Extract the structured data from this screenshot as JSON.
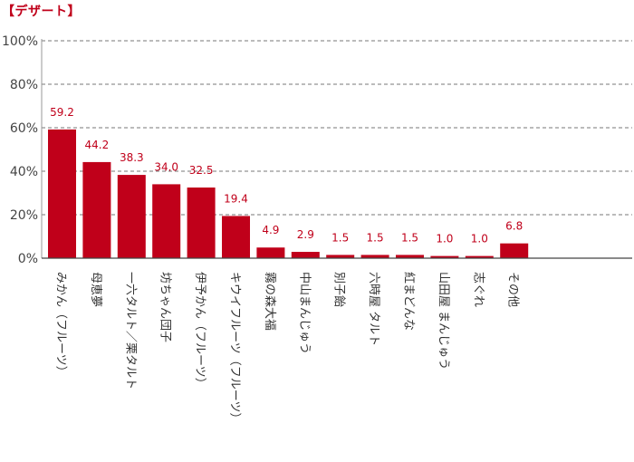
{
  "title": "【デザート】",
  "chart_data": {
    "type": "bar",
    "title": "【デザート】",
    "xlabel": "",
    "ylabel": "",
    "ylim": [
      0,
      100
    ],
    "yticks": [
      "0%",
      "20%",
      "40%",
      "60%",
      "80%",
      "100%"
    ],
    "ytick_values": [
      0,
      20,
      40,
      60,
      80,
      100
    ],
    "grid": true,
    "bar_color": "#c0001a",
    "label_color": "#c0001a",
    "categories": [
      "みかん（フルーツ）",
      "母恵夢",
      "一六タルト／栗タルト",
      "坊ちゃん団子",
      "伊予かん（フルーツ）",
      "キウイフルーツ（フルーツ）",
      "霧の森大福",
      "中山まんじゅう",
      "別子飴",
      "六時屋 タルト",
      "紅まどんな",
      "山田屋 まんじゅう",
      "志ぐれ",
      "その他"
    ],
    "values": [
      59.2,
      44.2,
      38.3,
      34.0,
      32.5,
      19.4,
      4.9,
      2.9,
      1.5,
      1.5,
      1.5,
      1.0,
      1.0,
      6.8
    ],
    "value_labels": [
      "59.2",
      "44.2",
      "38.3",
      "34.0",
      "32.5",
      "19.4",
      "4.9",
      "2.9",
      "1.5",
      "1.5",
      "1.5",
      "1.0",
      "1.0",
      "6.8"
    ]
  }
}
